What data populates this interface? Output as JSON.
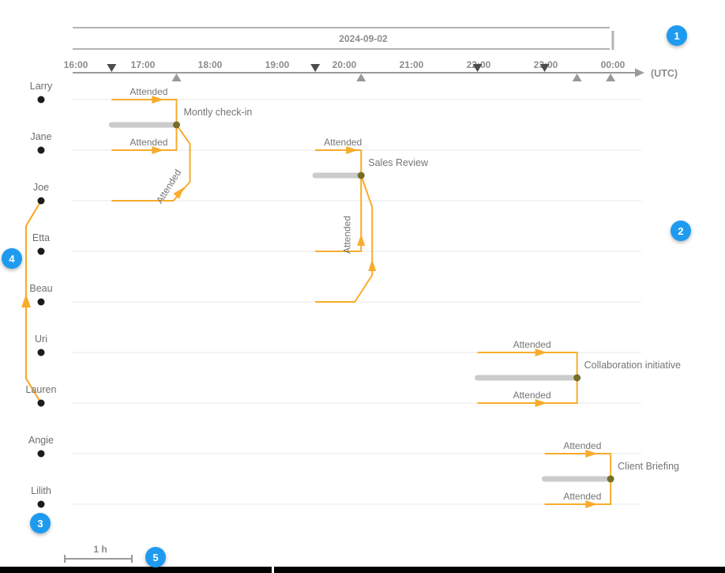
{
  "figure": {
    "date_label": "2024-09-02",
    "utc_label": "(UTC)",
    "scale_label": "1 h"
  },
  "annotations": {
    "badges": [
      {
        "label": "1"
      },
      {
        "label": "2"
      },
      {
        "label": "3"
      },
      {
        "label": "4"
      },
      {
        "label": "5"
      }
    ]
  },
  "colors": {
    "edge": "#F7AC2C",
    "bar": "#CBCBCB",
    "meeting_node": "#756E28",
    "person_node": "#1C1C1C",
    "badge": "#1E9BF0",
    "axis": "#9A9A9A",
    "band": "#B3B3B3",
    "start_marker": "#4D4D4D",
    "end_marker": "#9A9A9A",
    "row_line": "#E8E8E8"
  },
  "chart_data": {
    "type": "timeline",
    "title": "",
    "date": "2024-09-02",
    "x_axis": {
      "unit": "(UTC)",
      "ticks": [
        "16:00",
        "17:00",
        "18:00",
        "19:00",
        "20:00",
        "21:00",
        "22:00",
        "23:00",
        "00:00"
      ]
    },
    "people": [
      "Larry",
      "Jane",
      "Joe",
      "Etta",
      "Beau",
      "Uri",
      "Lauren",
      "Angie",
      "Lilith"
    ],
    "meetings": [
      {
        "name": "Montly check-in",
        "start": "16:32",
        "end": "17:30",
        "row_between": [
          "Larry",
          "Jane"
        ]
      },
      {
        "name": "Sales Review",
        "start": "19:34",
        "end": "20:15",
        "row_between": [
          "Jane",
          "Joe"
        ]
      },
      {
        "name": "Collaboration initiative",
        "start": "21:59",
        "end": "23:28",
        "row_between": [
          "Uri",
          "Lauren"
        ]
      },
      {
        "name": "Client Briefing",
        "start": "22:59",
        "end": "23:58",
        "row_between": [
          "Angie",
          "Lilith"
        ]
      }
    ],
    "edges": [
      {
        "meeting": "Montly check-in",
        "person": "Larry",
        "label": "Attended"
      },
      {
        "meeting": "Montly check-in",
        "person": "Jane",
        "label": "Attended"
      },
      {
        "meeting": "Montly check-in",
        "person": "Joe",
        "label": "Attended",
        "label_rotated": true
      },
      {
        "meeting": "Sales Review",
        "person": "Jane",
        "label": "Attended"
      },
      {
        "meeting": "Sales Review",
        "person": "Etta",
        "label": "Attended",
        "label_rotated": true
      },
      {
        "meeting": "Sales Review",
        "person": "Beau",
        "label": ""
      },
      {
        "meeting": "Collaboration initiative",
        "person": "Uri",
        "label": "Attended"
      },
      {
        "meeting": "Collaboration initiative",
        "person": "Lauren",
        "label": "Attended"
      },
      {
        "meeting": "Client Briefing",
        "person": "Angie",
        "label": "Attended"
      },
      {
        "meeting": "Client Briefing",
        "person": "Lilith",
        "label": "Attended"
      }
    ],
    "person_edge": {
      "from": "Lauren",
      "to": "Joe"
    }
  }
}
